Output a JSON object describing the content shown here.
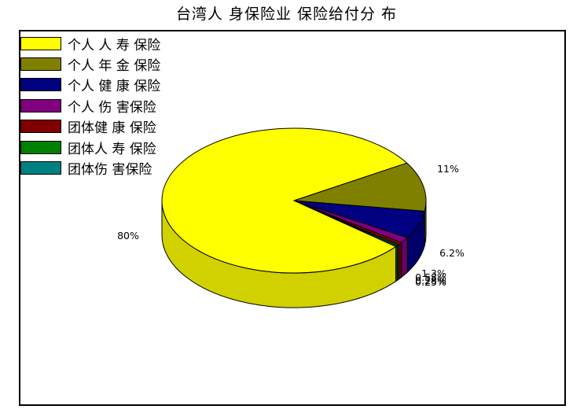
{
  "chart_data": {
    "type": "pie",
    "title": "台湾人 身保险业 保险给付分 布",
    "legend_position": "top-left",
    "three_d": true,
    "slices": [
      {
        "name": "个人 人 寿 保险",
        "value": 80.0,
        "label": "80%",
        "color": "#ffff00"
      },
      {
        "name": "个人 年 金 保险",
        "value": 11.0,
        "label": "11%",
        "color": "#808000"
      },
      {
        "name": "个人 健 康 保险",
        "value": 6.2,
        "label": "6.2%",
        "color": "#000080"
      },
      {
        "name": "个人 伤 害保险",
        "value": 1.3,
        "label": "1.3%",
        "color": "#800080"
      },
      {
        "name": "团体健 康 保险",
        "value": 0.58,
        "label": "0.58%",
        "color": "#800000"
      },
      {
        "name": "团体人 寿 保险",
        "value": 0.28,
        "label": "0.28%",
        "color": "#008000"
      },
      {
        "name": "团体伤 害保险",
        "value": 0.25,
        "label": "0.25%",
        "color": "#008080"
      }
    ]
  }
}
